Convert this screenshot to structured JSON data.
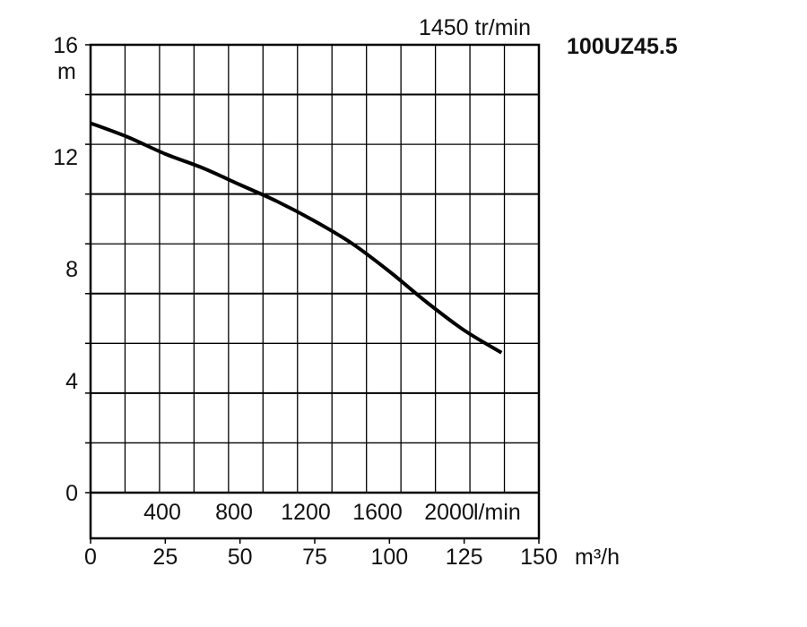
{
  "header": {
    "speed_label": "1450 tr/min",
    "model_label": "100UZ45.5"
  },
  "chart_data": {
    "type": "line",
    "title": "",
    "ylabel": "m",
    "xlabel": "m³/h",
    "xlabel_secondary": "l/min",
    "ylim": [
      0,
      16
    ],
    "xlim": [
      0,
      150
    ],
    "y_ticks": [
      0,
      4,
      8,
      12,
      16
    ],
    "x_ticks": [
      0,
      25,
      50,
      75,
      100,
      125,
      150
    ],
    "x_ticks_secondary": [
      400,
      800,
      1200,
      1600,
      2000
    ],
    "grid": true,
    "series": [
      {
        "x": [
          0,
          12.5,
          25,
          37.5,
          50,
          62.5,
          75,
          87.5,
          100,
          112.5,
          125,
          137.5
        ],
        "y": [
          13.2,
          12.7,
          12.1,
          11.6,
          11.0,
          10.4,
          9.7,
          8.9,
          7.9,
          6.8,
          5.8,
          5.0
        ]
      }
    ]
  }
}
